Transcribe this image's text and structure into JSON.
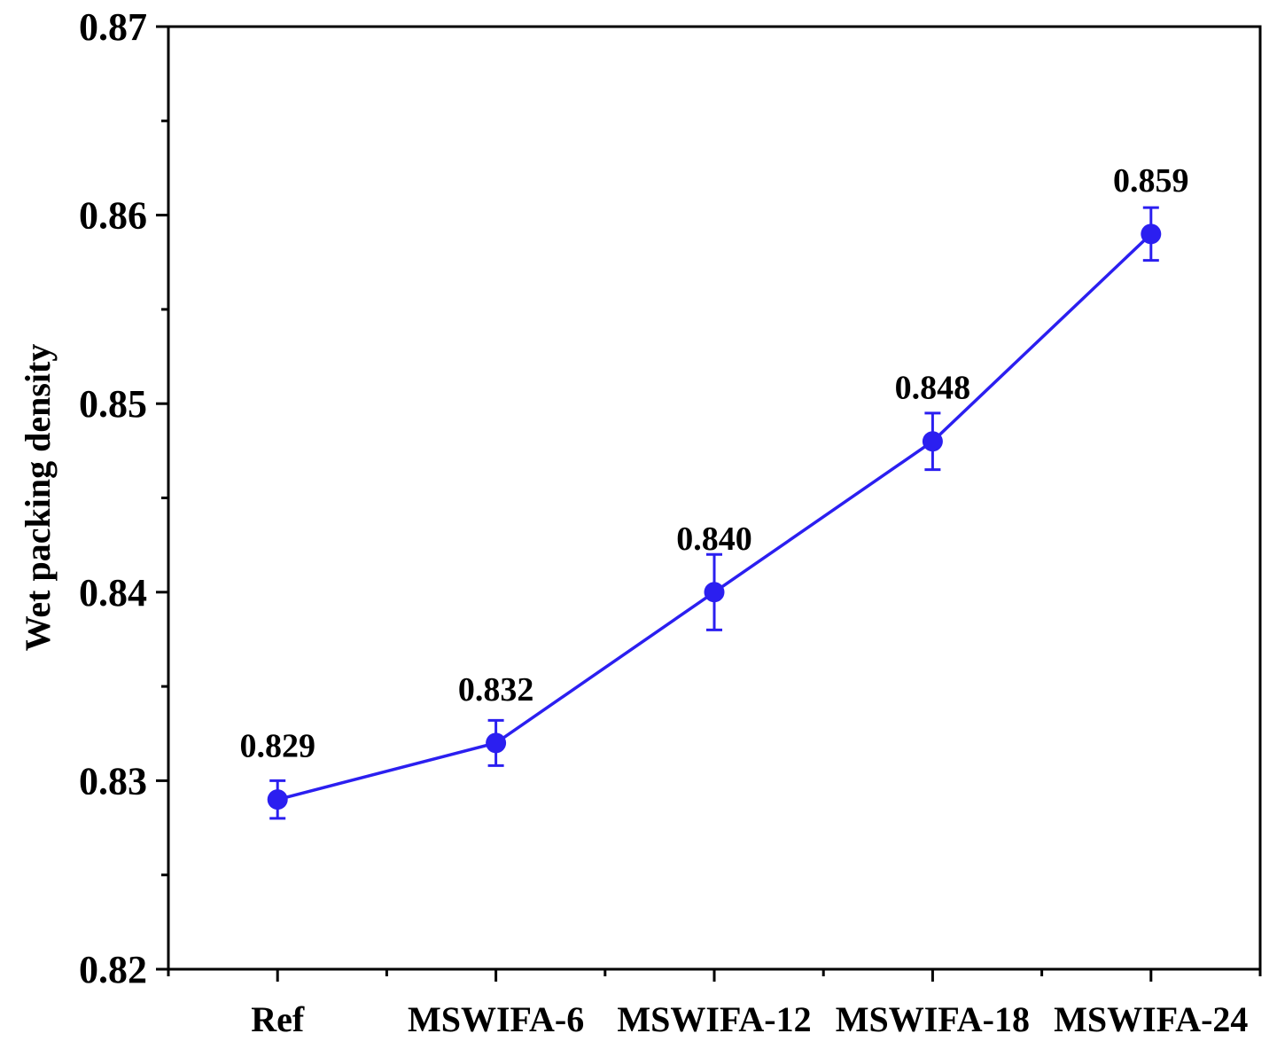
{
  "chart_data": {
    "type": "line",
    "title": "",
    "xlabel": "",
    "ylabel": "Wet packing density",
    "categories": [
      "Ref",
      "MSWIFA-6",
      "MSWIFA-12",
      "MSWIFA-18",
      "MSWIFA-24"
    ],
    "series": [
      {
        "name": "Wet packing density",
        "values": [
          0.829,
          0.832,
          0.84,
          0.848,
          0.859
        ],
        "error": [
          0.001,
          0.0012,
          0.002,
          0.0015,
          0.0014
        ],
        "data_labels": [
          "0.829",
          "0.832",
          "0.840",
          "0.848",
          "0.859"
        ],
        "color": "#2b1ff0"
      }
    ],
    "ylim": [
      0.82,
      0.87
    ],
    "yticks": [
      "0.82",
      "0.83",
      "0.84",
      "0.85",
      "0.86",
      "0.87"
    ],
    "grid": false,
    "legend": "none"
  }
}
